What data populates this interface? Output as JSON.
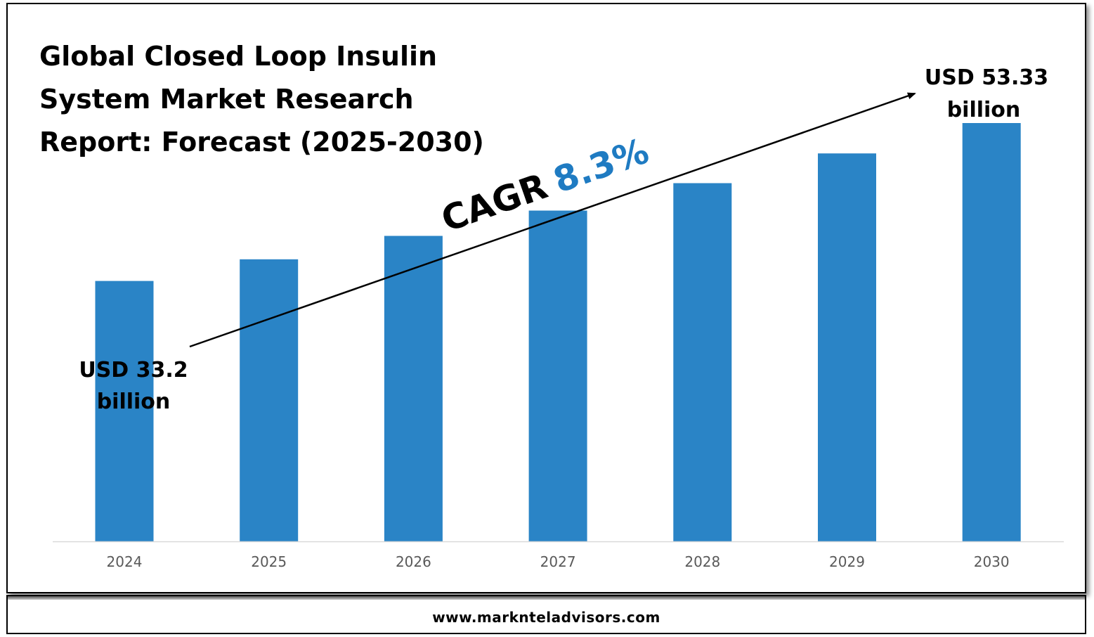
{
  "title_lines": [
    "Global Closed Loop Insulin",
    "System Market Research",
    "Report: Forecast (2025-2030)"
  ],
  "chart_data": {
    "type": "bar",
    "categories": [
      "2024",
      "2025",
      "2026",
      "2027",
      "2028",
      "2029",
      "2030"
    ],
    "values": [
      33.2,
      35.96,
      38.94,
      42.17,
      45.67,
      49.46,
      53.33
    ],
    "unit": "USD billion",
    "grid": false,
    "bar_color": "#2a84c6",
    "annotations": {
      "start_label": [
        "USD 33.2",
        "billion"
      ],
      "end_label": [
        "USD 53.33",
        "billion"
      ],
      "cagr_prefix": "CAGR",
      "cagr_value": "8.3%",
      "cagr_color": "#1f7bc2"
    }
  },
  "footer": {
    "url": "www.marknteladvisors.com"
  }
}
